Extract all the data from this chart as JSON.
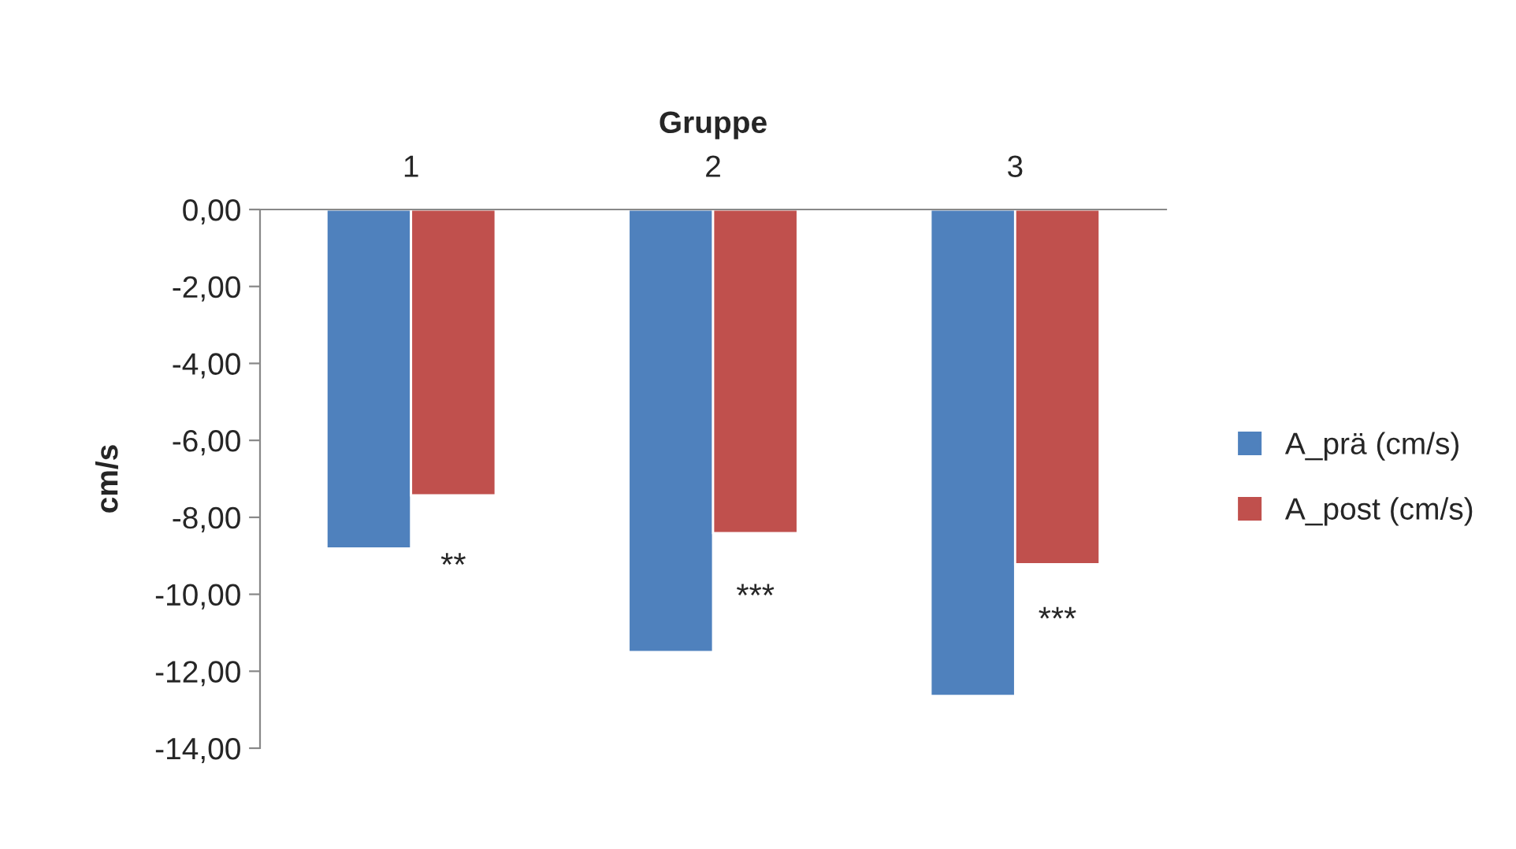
{
  "chart_data": {
    "type": "bar",
    "xlabel": "Gruppe",
    "ylabel": "cm/s",
    "categories": [
      "1",
      "2",
      "3"
    ],
    "series": [
      {
        "name": "A_prä (cm/s)",
        "color": "#4f81bd",
        "values": [
          -8.81,
          -11.5,
          -12.64
        ]
      },
      {
        "name": "A_post (cm/s)",
        "color": "#c0504d",
        "values": [
          -7.43,
          -8.41,
          -9.22
        ]
      }
    ],
    "ylim": [
      -14,
      0
    ],
    "yticks": [
      {
        "value": 0,
        "label": "0,00"
      },
      {
        "value": -2,
        "label": "-2,00"
      },
      {
        "value": -4,
        "label": "-4,00"
      },
      {
        "value": -6,
        "label": "-6,00"
      },
      {
        "value": -8,
        "label": "-8,00"
      },
      {
        "value": -10,
        "label": "-10,00"
      },
      {
        "value": -12,
        "label": "-12,00"
      },
      {
        "value": -14,
        "label": "-14,00"
      }
    ],
    "grid": false,
    "legend": "right",
    "annotations": [
      {
        "text": "**",
        "x": "1",
        "y": -8.9
      },
      {
        "text": "***",
        "x": "2",
        "y": -9.7
      },
      {
        "text": "***",
        "x": "3",
        "y": -10.3
      }
    ]
  }
}
